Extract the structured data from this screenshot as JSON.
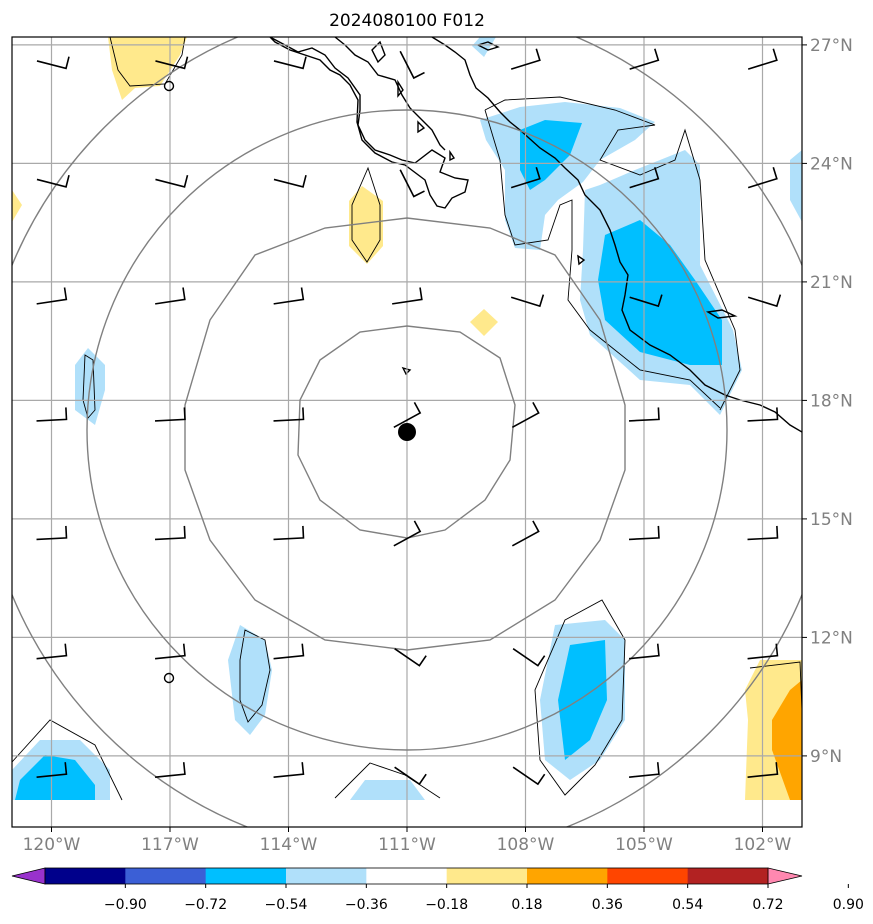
{
  "title": "2024080100 F012",
  "longitude_labels": [
    "120°W",
    "117°W",
    "114°W",
    "111°W",
    "108°W",
    "105°W",
    "102°W"
  ],
  "latitude_labels": [
    "27°N",
    "24°N",
    "21°N",
    "18°N",
    "15°N",
    "12°N",
    "9°N"
  ],
  "colorbar": {
    "tick_labels": [
      "−0.90",
      "−0.72",
      "−0.54",
      "−0.36",
      "−0.18",
      "0.18",
      "0.36",
      "0.54",
      "0.72",
      "0.90"
    ],
    "colors": [
      "#9932cc",
      "#00008b",
      "#3b5fd6",
      "#00bfff",
      "#b0e0fa",
      "#ffffff",
      "#ffe98c",
      "#ffa500",
      "#ff4500",
      "#b22222",
      "#ff88b0"
    ]
  },
  "field_colors": {
    "pos_weak": "#ffe98c",
    "pos_mid": "#ffa500",
    "neg_weak": "#b0e0fa",
    "neg_mid": "#00bfff"
  },
  "storm_center": {
    "lon": -111,
    "lat": 17.2
  }
}
